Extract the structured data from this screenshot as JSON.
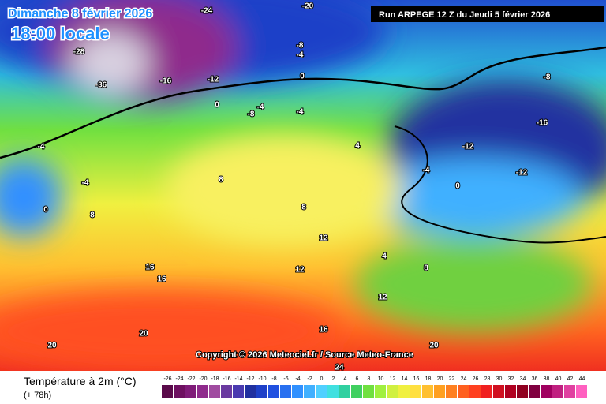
{
  "header": {
    "title": "Dimanche 8 février 2026",
    "subtitle": "18:00 locale",
    "run": "Run ARPEGE 12 Z du Jeudi 5 février 2026"
  },
  "copyright": "Copyright © 2026 Meteociel.fr / Source Meteo-France",
  "legend": {
    "title": "Température à 2m (°C)",
    "lead": "(+ 78h)",
    "values": [
      -26,
      -24,
      -22,
      -20,
      -18,
      -16,
      -14,
      -12,
      -10,
      -8,
      -6,
      -4,
      -2,
      0,
      2,
      4,
      6,
      8,
      10,
      12,
      14,
      16,
      18,
      20,
      22,
      24,
      26,
      28,
      30,
      32,
      34,
      36,
      38,
      40,
      42,
      44
    ],
    "colors": [
      "#5a0a4a",
      "#6e1060",
      "#7f1b78",
      "#8f2a8c",
      "#a04ba0",
      "#6a3aa0",
      "#4a3ab0",
      "#2030a0",
      "#1e40c8",
      "#2050e0",
      "#2870f0",
      "#3090ff",
      "#40b0ff",
      "#50d0ff",
      "#40e0e0",
      "#30d0a0",
      "#40d060",
      "#70e040",
      "#a0f040",
      "#d0f040",
      "#f0f040",
      "#ffe040",
      "#ffc030",
      "#ffa020",
      "#ff8020",
      "#ff6020",
      "#ff4020",
      "#f02020",
      "#d01020",
      "#b00020",
      "#900020",
      "#800040",
      "#a00060",
      "#c02080",
      "#e040a0",
      "#ff60c0"
    ]
  },
  "map_labels": [
    "-20",
    "-24",
    "-28",
    "-36",
    "-16",
    "-12",
    "-8",
    "-4",
    "0",
    "0",
    "-4",
    "-8",
    "-4",
    "-4",
    "-4",
    "0",
    "8",
    "8",
    "4",
    "8",
    "12",
    "12",
    "16",
    "16",
    "20",
    "20",
    "16",
    "20",
    "24",
    "-12",
    "-16",
    "-8",
    "-12",
    "-4",
    "0",
    "4",
    "8",
    "12"
  ]
}
